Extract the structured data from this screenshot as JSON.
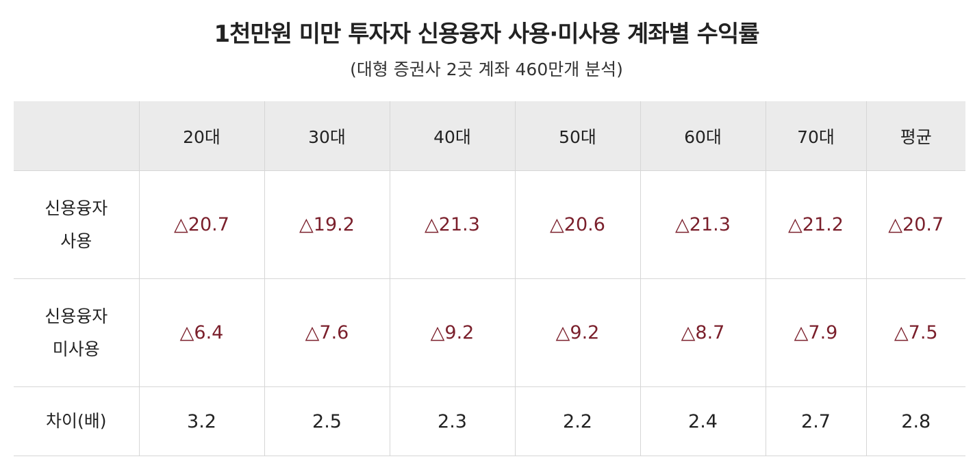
{
  "header": {
    "title": "1천만원 미만 투자자 신용융자 사용·미사용 계좌별 수익률",
    "subtitle": "(대형 증권사 2곳 계좌 460만개 분석)"
  },
  "table": {
    "columns": [
      "20대",
      "30대",
      "40대",
      "50대",
      "60대",
      "70대",
      "평균"
    ],
    "rows": [
      {
        "label": [
          "신용융자",
          "사용"
        ],
        "cells": [
          "△20.7",
          "△19.2",
          "△21.3",
          "△20.6",
          "△21.3",
          "△21.2",
          "△20.7"
        ]
      },
      {
        "label": [
          "신용융자",
          "미사용"
        ],
        "cells": [
          "△6.4",
          "△7.6",
          "△9.2",
          "△9.2",
          "△8.7",
          "△7.9",
          "△7.5"
        ]
      },
      {
        "label": [
          "차이(배)"
        ],
        "cells": [
          "3.2",
          "2.5",
          "2.3",
          "2.2",
          "2.4",
          "2.7",
          "2.8"
        ]
      }
    ]
  }
}
